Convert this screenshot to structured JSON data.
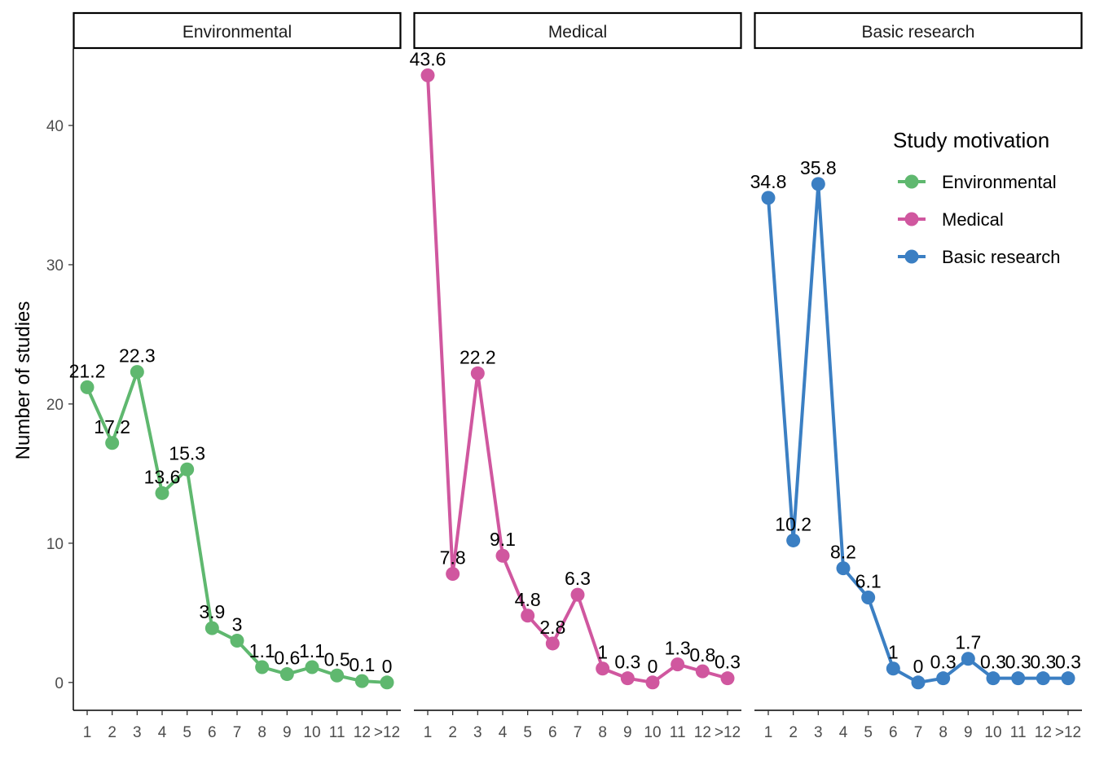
{
  "chart_data": {
    "type": "line",
    "ylabel": "Number of studies",
    "xlabel": "",
    "categories": [
      "1",
      "2",
      "3",
      "4",
      "5",
      "6",
      "7",
      "8",
      "9",
      "10",
      "11",
      "12",
      ">12"
    ],
    "yticks": [
      0,
      10,
      20,
      30,
      40
    ],
    "ylim": [
      -2,
      45.5
    ],
    "grid": false,
    "legend": {
      "title": "Study motivation",
      "placement": "right",
      "entries": [
        "Environmental",
        "Medical",
        "Basic research"
      ]
    },
    "panels": [
      {
        "title": "Environmental",
        "color": "#5fb86f",
        "values": [
          21.2,
          17.2,
          22.3,
          13.6,
          15.3,
          3.9,
          3,
          1.1,
          0.6,
          1.1,
          0.5,
          0.1,
          0
        ],
        "labels": [
          "21.2",
          "17.2",
          "22.3",
          "13.6",
          "15.3",
          "3.9",
          "3",
          "1.1",
          "0.6",
          "1.1",
          "0.5",
          "0.1",
          "0"
        ]
      },
      {
        "title": "Medical",
        "color": "#d0579f",
        "values": [
          43.6,
          7.8,
          22.2,
          9.1,
          4.8,
          2.8,
          6.3,
          1,
          0.3,
          0,
          1.3,
          0.8,
          0.3
        ],
        "labels": [
          "43.6",
          "7.8",
          "22.2",
          "9.1",
          "4.8",
          "2.8",
          "6.3",
          "1",
          "0.3",
          "0",
          "1.3",
          "0.8",
          "0.3"
        ]
      },
      {
        "title": "Basic research",
        "color": "#3b7fc3",
        "values": [
          34.8,
          10.2,
          35.8,
          8.2,
          6.1,
          1,
          0,
          0.3,
          1.7,
          0.3,
          0.3,
          0.3,
          0.3
        ],
        "labels": [
          "34.8",
          "10.2",
          "35.8",
          "8.2",
          "6.1",
          "1",
          "0",
          "0.3",
          "1.7",
          "0.3",
          "0.3",
          "0.3",
          "0.3"
        ]
      }
    ]
  }
}
